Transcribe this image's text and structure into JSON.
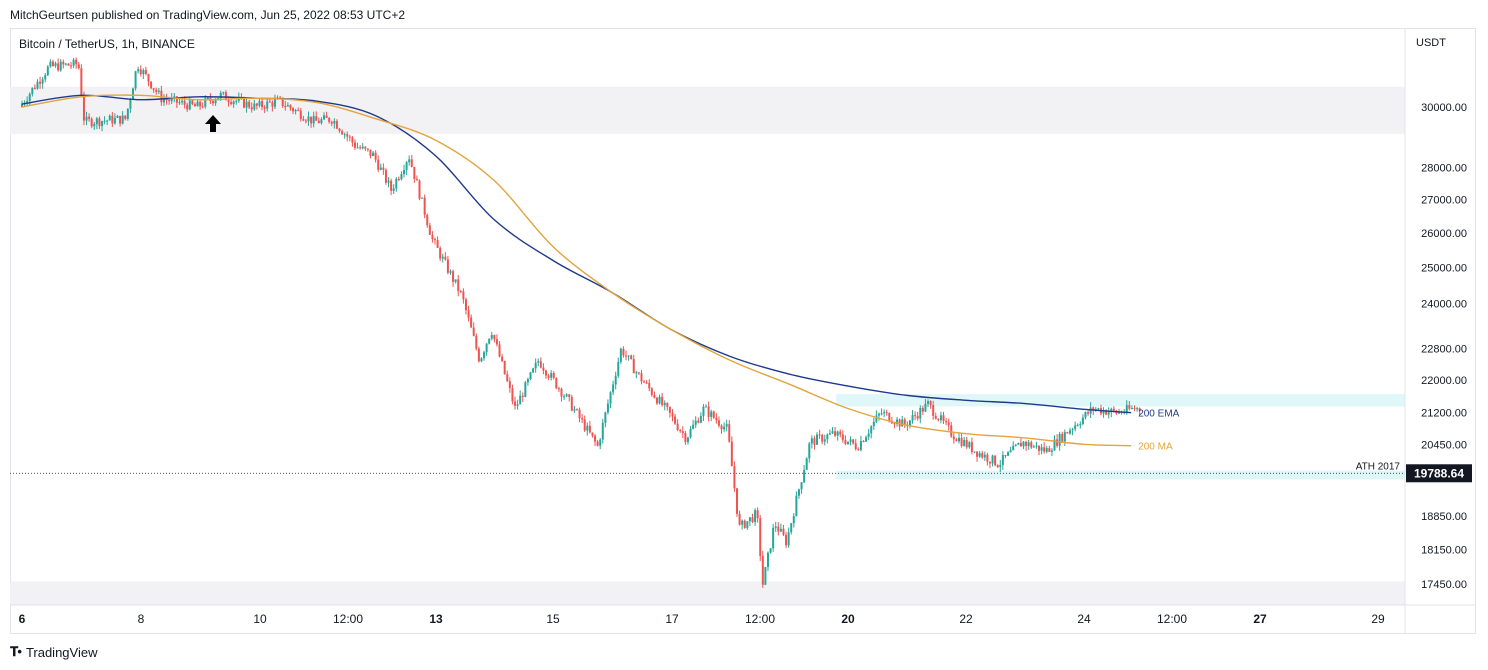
{
  "header": {
    "publisher_line": "MitchGeurtsen published on TradingView.com, Jun 25, 2022 08:53 UTC+2"
  },
  "footer": {
    "brand": "TradingView",
    "logo_icon": "tradingview-logo-icon"
  },
  "colors": {
    "up": "#26a69a",
    "down": "#ef5350",
    "ema": "#1e3a8a",
    "ma": "#e3a43b",
    "zone_cyan": "#e0f7fa",
    "zone_gray": "#f2f2f5",
    "price_label_bg": "#131722"
  },
  "chart_data": {
    "type": "candlestick",
    "title": "Bitcoin / TetherUS, 1h, BINANCE",
    "currency_label": "USDT",
    "x_ticks": [
      "6",
      "8",
      "10",
      "12:00",
      "13",
      "15",
      "17",
      "12:00",
      "20",
      "22",
      "24",
      "12:00",
      "27",
      "29"
    ],
    "x_ticks_bold": [
      "6",
      "13",
      "20",
      "27"
    ],
    "y_ticks": [
      30000.0,
      28000.0,
      27000.0,
      26000.0,
      25000.0,
      24000.0,
      22800.0,
      22000.0,
      21200.0,
      20450.0,
      18850.0,
      18150.0,
      17450.0
    ],
    "y_tick_labels": [
      "30000.00",
      "28000.00",
      "27000.00",
      "26000.00",
      "25000.00",
      "24000.00",
      "22800.00",
      "22000.00",
      "21200.00",
      "20450.00",
      "18850.00",
      "18150.00",
      "17450.00"
    ],
    "y_scale": "log",
    "y_range": [
      17000,
      32000
    ],
    "x_range_days": [
      "Jun 6",
      "Jun 29"
    ],
    "current_price": 19788.64,
    "current_price_label": "19788.64",
    "reference_line": {
      "price": 19788.64,
      "label": "ATH 2017",
      "style": "dotted"
    },
    "zones": [
      {
        "type": "resistance",
        "from": 29100,
        "to": 30700,
        "color": "gray"
      },
      {
        "type": "support",
        "from": 17000,
        "to": 17500,
        "color": "gray"
      },
      {
        "type": "resistance",
        "from": 21350,
        "to": 21650,
        "color": "cyan"
      },
      {
        "type": "support",
        "from": 19650,
        "to": 19850,
        "color": "cyan"
      }
    ],
    "series": [
      {
        "name": "200 EMA",
        "path": [
          [
            6.0,
            30100
          ],
          [
            7.0,
            30400
          ],
          [
            8.0,
            30250
          ],
          [
            9.0,
            30350
          ],
          [
            10.0,
            30300
          ],
          [
            11.0,
            30200
          ],
          [
            12.0,
            29700
          ],
          [
            13.0,
            28400
          ],
          [
            14.0,
            26400
          ],
          [
            15.0,
            25200
          ],
          [
            16.0,
            24300
          ],
          [
            17.0,
            23300
          ],
          [
            18.0,
            22600
          ],
          [
            19.0,
            22150
          ],
          [
            20.0,
            21850
          ],
          [
            21.0,
            21620
          ],
          [
            22.0,
            21500
          ],
          [
            23.0,
            21420
          ],
          [
            24.0,
            21280
          ],
          [
            24.8,
            21200
          ]
        ]
      },
      {
        "name": "200 MA",
        "path": [
          [
            6.0,
            30000
          ],
          [
            7.0,
            30350
          ],
          [
            8.0,
            30400
          ],
          [
            9.0,
            30250
          ],
          [
            10.0,
            30300
          ],
          [
            11.0,
            30150
          ],
          [
            12.0,
            29600
          ],
          [
            13.0,
            28900
          ],
          [
            14.0,
            27600
          ],
          [
            15.0,
            25600
          ],
          [
            16.0,
            24300
          ],
          [
            17.0,
            23300
          ],
          [
            18.0,
            22500
          ],
          [
            19.0,
            21900
          ],
          [
            20.0,
            21300
          ],
          [
            21.0,
            20900
          ],
          [
            22.0,
            20700
          ],
          [
            23.0,
            20600
          ],
          [
            24.0,
            20450
          ],
          [
            24.8,
            20420
          ]
        ]
      }
    ],
    "candle_path": [
      [
        6.0,
        30000
      ],
      [
        6.5,
        31400
      ],
      [
        7.0,
        31500
      ],
      [
        7.1,
        29500
      ],
      [
        7.8,
        29600
      ],
      [
        8.0,
        31500
      ],
      [
        8.4,
        30300
      ],
      [
        9.0,
        30000
      ],
      [
        9.4,
        30400
      ],
      [
        10.0,
        30000
      ],
      [
        10.4,
        30200
      ],
      [
        11.0,
        29500
      ],
      [
        11.3,
        29600
      ],
      [
        11.7,
        28700
      ],
      [
        12.0,
        28400
      ],
      [
        12.3,
        27300
      ],
      [
        12.6,
        28400
      ],
      [
        13.0,
        25800
      ],
      [
        13.5,
        24200
      ],
      [
        13.8,
        22500
      ],
      [
        14.0,
        23300
      ],
      [
        14.4,
        21300
      ],
      [
        14.8,
        22500
      ],
      [
        15.3,
        21500
      ],
      [
        15.8,
        20400
      ],
      [
        16.2,
        22800
      ],
      [
        16.5,
        22100
      ],
      [
        17.0,
        21200
      ],
      [
        17.3,
        20600
      ],
      [
        17.6,
        21300
      ],
      [
        18.0,
        20800
      ],
      [
        18.2,
        18600
      ],
      [
        18.5,
        18900
      ],
      [
        18.6,
        17450
      ],
      [
        18.8,
        18700
      ],
      [
        19.0,
        18300
      ],
      [
        19.4,
        20500
      ],
      [
        19.8,
        20700
      ],
      [
        20.2,
        20400
      ],
      [
        20.6,
        21200
      ],
      [
        21.0,
        20900
      ],
      [
        21.4,
        21400
      ],
      [
        21.8,
        20700
      ],
      [
        22.2,
        20300
      ],
      [
        22.6,
        20000
      ],
      [
        23.0,
        20500
      ],
      [
        23.4,
        20300
      ],
      [
        23.8,
        20800
      ],
      [
        24.2,
        21300
      ],
      [
        24.6,
        21200
      ],
      [
        24.9,
        21300
      ]
    ]
  }
}
